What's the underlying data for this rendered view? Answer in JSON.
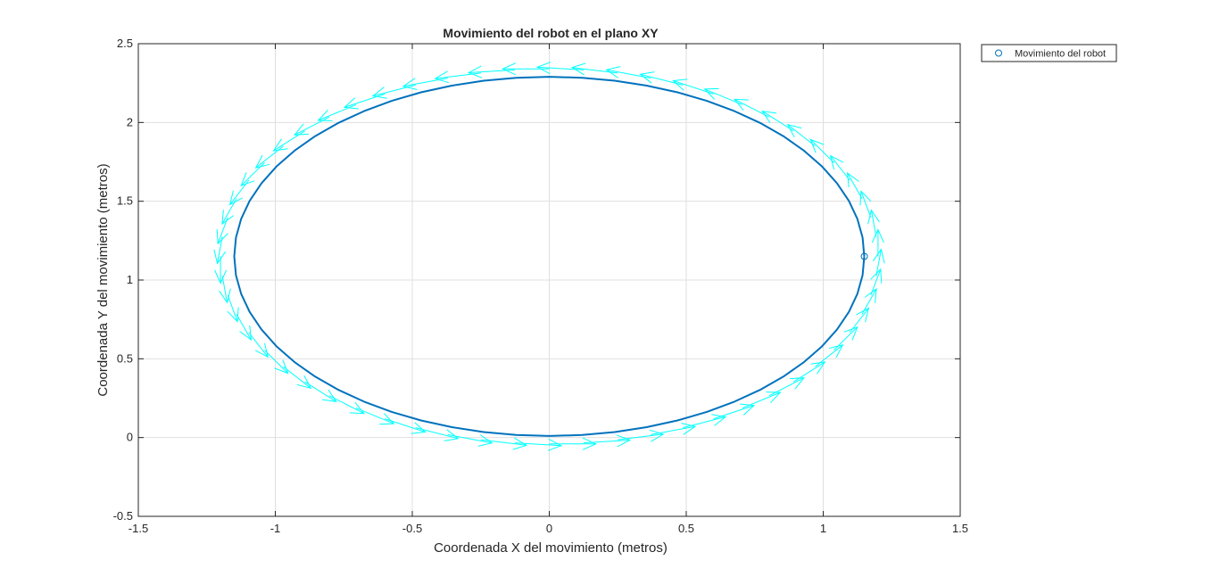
{
  "chart_data": {
    "type": "line",
    "title": "Movimiento del robot en el plano XY",
    "xlabel": "Coordenada X del movimiento (metros)",
    "ylabel": "Coordenada Y del movimiento (metros)",
    "xlim": [
      -1.5,
      1.5
    ],
    "ylim": [
      -0.5,
      2.5
    ],
    "xticks": [
      -1.5,
      -1,
      -0.5,
      0,
      0.5,
      1,
      1.5
    ],
    "xtick_labels": [
      "-1.5",
      "-1",
      "-0.5",
      "0",
      "0.5",
      "1",
      "1.5"
    ],
    "yticks": [
      -0.5,
      0,
      0.5,
      1,
      1.5,
      2,
      2.5
    ],
    "ytick_labels": [
      "-0.5",
      "0",
      "0.5",
      "1",
      "1.5",
      "2",
      "2.5"
    ],
    "grid": true,
    "legend": {
      "placement": "outside-top-right",
      "entries": [
        "Movimiento del robot"
      ]
    },
    "trajectory": {
      "shape": "ellipse",
      "center": [
        0,
        1.15
      ],
      "semi_axis_x": 1.15,
      "semi_axis_y": 1.14,
      "points": 60,
      "color": "#0072BD"
    },
    "heading_arrows": {
      "color": "#00FFFF",
      "count": 60,
      "direction": "counterclockwise-tangent",
      "length": 0.17,
      "offset_from_path": 0.05
    },
    "current_position": {
      "x": 1.15,
      "y": 1.15,
      "marker": "circle",
      "color": "#0072BD"
    }
  }
}
